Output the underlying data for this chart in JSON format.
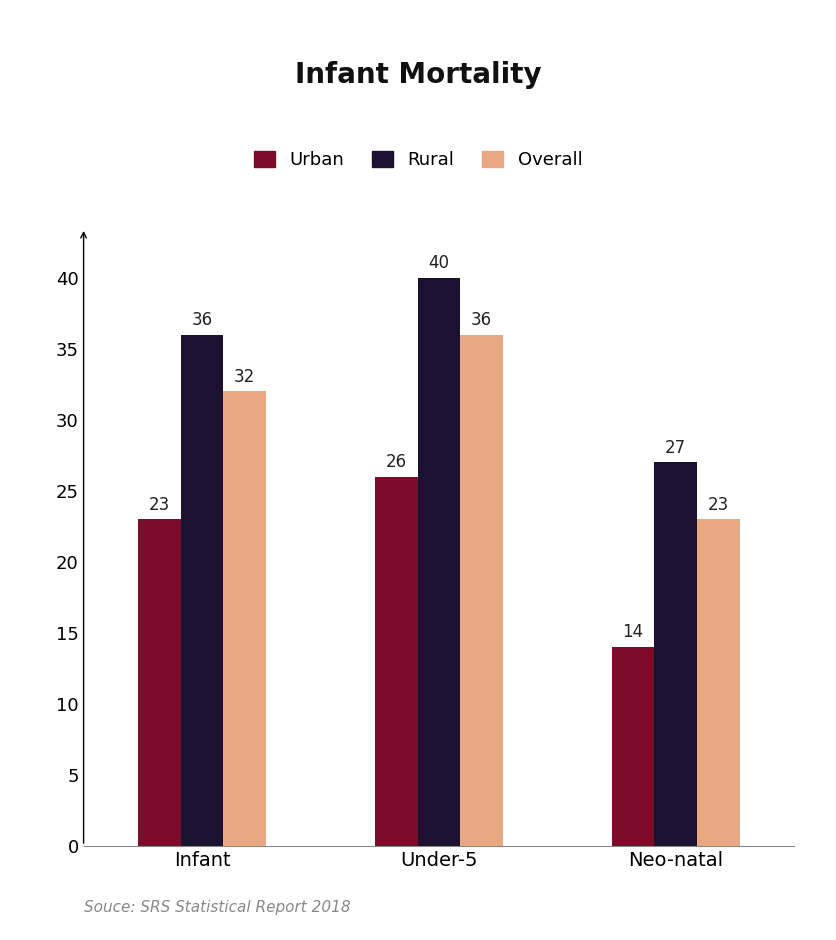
{
  "title": "Infant Mortality",
  "categories": [
    "Infant",
    "Under-5",
    "Neo-natal"
  ],
  "series": {
    "Urban": [
      23,
      26,
      14
    ],
    "Rural": [
      36,
      40,
      27
    ],
    "Overall": [
      32,
      36,
      23
    ]
  },
  "colors": {
    "Urban": "#7B0D2A",
    "Rural": "#1C1130",
    "Overall": "#E8A882"
  },
  "ylim": [
    0,
    45
  ],
  "yticks": [
    0,
    5,
    10,
    15,
    20,
    25,
    30,
    35,
    40
  ],
  "bar_width": 0.18,
  "title_fontsize": 20,
  "tick_fontsize": 13,
  "label_fontsize": 14,
  "value_fontsize": 12,
  "legend_fontsize": 13,
  "source_text": "Souce: SRS Statistical Report 2018",
  "background_color": "#FFFFFF"
}
